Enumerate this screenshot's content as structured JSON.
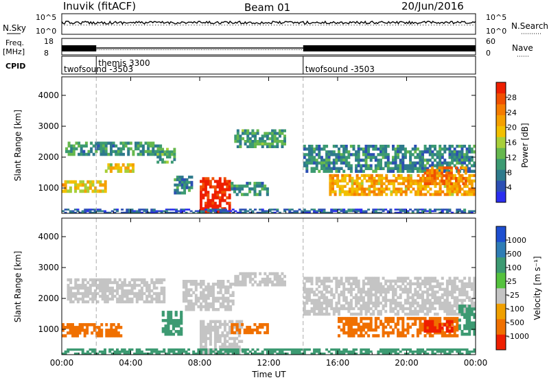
{
  "header": {
    "site": "Inuvik (fitACF)",
    "beam": "Beam 01",
    "date": "20/Jun/2016"
  },
  "noise_panel": {
    "left_label": "N.Sky",
    "left_ticks": [
      "10^5",
      "10^0"
    ],
    "right_label": "N.Search",
    "right_ticks": [
      "10^5",
      "10^0"
    ]
  },
  "freq_panel": {
    "left_label_line1": "Freq.",
    "left_label_line2": "[MHz]",
    "left_ticks": [
      "18",
      "8"
    ],
    "right_label": "Nave",
    "right_ticks": [
      "60",
      "0"
    ]
  },
  "cpid": {
    "label": "CPID",
    "segments": [
      {
        "name": "twofsound -3503",
        "start_hour": 0.0
      },
      {
        "name": "themis 3300",
        "start_hour": 2.0
      },
      {
        "name": "twofsound -3503",
        "start_hour": 14.0
      }
    ]
  },
  "colors": {
    "power_scale": [
      "#2b2ef0",
      "#2c4fb4",
      "#2e7a8c",
      "#3c9a72",
      "#66b84e",
      "#a8cf3a",
      "#f2c000",
      "#f5a000",
      "#f57c00",
      "#f05000",
      "#ee1f00"
    ],
    "velocity_scale": [
      "#1e4fd0",
      "#2f7db5",
      "#3d9a72",
      "#55c23e",
      "#c4c4c4",
      "#f0a000",
      "#f07000",
      "#ee1f00"
    ],
    "ground_scatter": "#b4b4b4"
  },
  "chart_data": [
    {
      "type": "heatmap",
      "title": "",
      "xlabel": "",
      "ylabel": "Slant Range [km]",
      "xlim": [
        0,
        24
      ],
      "ylim": [
        180,
        4600
      ],
      "x_ticks": [
        "00:00",
        "04:00",
        "08:00",
        "12:00",
        "16:00",
        "20:00",
        "00:00"
      ],
      "y_ticks": [
        "1000",
        "2000",
        "3000",
        "4000"
      ],
      "colorbar": {
        "label": "Power [dB]",
        "ticks": [
          "28",
          "24",
          "20",
          "16",
          "12",
          "8",
          "4"
        ],
        "range": [
          0,
          30
        ]
      },
      "patches": [
        {
          "t0": 0.2,
          "t1": 5.8,
          "r0": 2050,
          "r1": 2500,
          "level": 9
        },
        {
          "t0": 0.0,
          "t1": 2.6,
          "r0": 850,
          "r1": 1250,
          "level": 18
        },
        {
          "t0": 2.5,
          "t1": 4.2,
          "r0": 1500,
          "r1": 1800,
          "level": 17
        },
        {
          "t0": 5.5,
          "t1": 6.6,
          "r0": 1800,
          "r1": 2300,
          "level": 11
        },
        {
          "t0": 6.5,
          "t1": 7.6,
          "r0": 800,
          "r1": 1400,
          "level": 8
        },
        {
          "t0": 8.0,
          "t1": 9.8,
          "r0": 200,
          "r1": 1350,
          "level": 29
        },
        {
          "t0": 10.0,
          "t1": 13.0,
          "r0": 2300,
          "r1": 2900,
          "level": 10
        },
        {
          "t0": 9.8,
          "t1": 12.0,
          "r0": 750,
          "r1": 1200,
          "level": 8
        },
        {
          "t0": 14.0,
          "t1": 24.0,
          "r0": 1500,
          "r1": 2400,
          "level": 8
        },
        {
          "t0": 15.5,
          "t1": 24.0,
          "r0": 750,
          "r1": 1450,
          "level": 20
        },
        {
          "t0": 21.0,
          "t1": 23.5,
          "r0": 1100,
          "r1": 1700,
          "level": 23
        },
        {
          "t0": 0.0,
          "t1": 24.0,
          "r0": 180,
          "r1": 330,
          "level": 5
        }
      ]
    },
    {
      "type": "heatmap",
      "title": "",
      "xlabel": "Time UT",
      "ylabel": "Slant Range [km]",
      "xlim": [
        0,
        24
      ],
      "ylim": [
        180,
        4600
      ],
      "x_ticks": [
        "00:00",
        "04:00",
        "08:00",
        "12:00",
        "16:00",
        "20:00",
        "00:00"
      ],
      "y_ticks": [
        "1000",
        "2000",
        "3000",
        "4000"
      ],
      "colorbar": {
        "label": "Velocity [m s⁻¹]",
        "ticks": [
          "1000",
          "500",
          "100",
          "25",
          "-25",
          "-100",
          "-500",
          "-1000"
        ],
        "range": [
          -1000,
          1000
        ]
      },
      "patches": [
        {
          "t0": 0.3,
          "t1": 6.0,
          "r0": 1850,
          "r1": 2650,
          "value": 0
        },
        {
          "t0": 0.0,
          "t1": 3.5,
          "r0": 750,
          "r1": 1200,
          "value": -500
        },
        {
          "t0": 5.8,
          "t1": 7.0,
          "r0": 800,
          "r1": 1600,
          "value": 100
        },
        {
          "t0": 8.0,
          "t1": 10.5,
          "r0": 200,
          "r1": 1300,
          "value": 0
        },
        {
          "t0": 7.0,
          "t1": 10.0,
          "r0": 1600,
          "r1": 2600,
          "value": 0
        },
        {
          "t0": 9.8,
          "t1": 12.0,
          "r0": 850,
          "r1": 1200,
          "value": -500
        },
        {
          "t0": 10.0,
          "t1": 13.0,
          "r0": 2400,
          "r1": 2850,
          "value": 0
        },
        {
          "t0": 14.0,
          "t1": 24.0,
          "r0": 1450,
          "r1": 2700,
          "value": 0
        },
        {
          "t0": 16.0,
          "t1": 23.0,
          "r0": 750,
          "r1": 1400,
          "value": -500
        },
        {
          "t0": 21.0,
          "t1": 22.7,
          "r0": 900,
          "r1": 1300,
          "value": -1000
        },
        {
          "t0": 23.0,
          "t1": 24.0,
          "r0": 800,
          "r1": 1800,
          "value": 100
        },
        {
          "t0": 0.0,
          "t1": 24.0,
          "r0": 180,
          "r1": 380,
          "value": 100
        }
      ]
    }
  ]
}
